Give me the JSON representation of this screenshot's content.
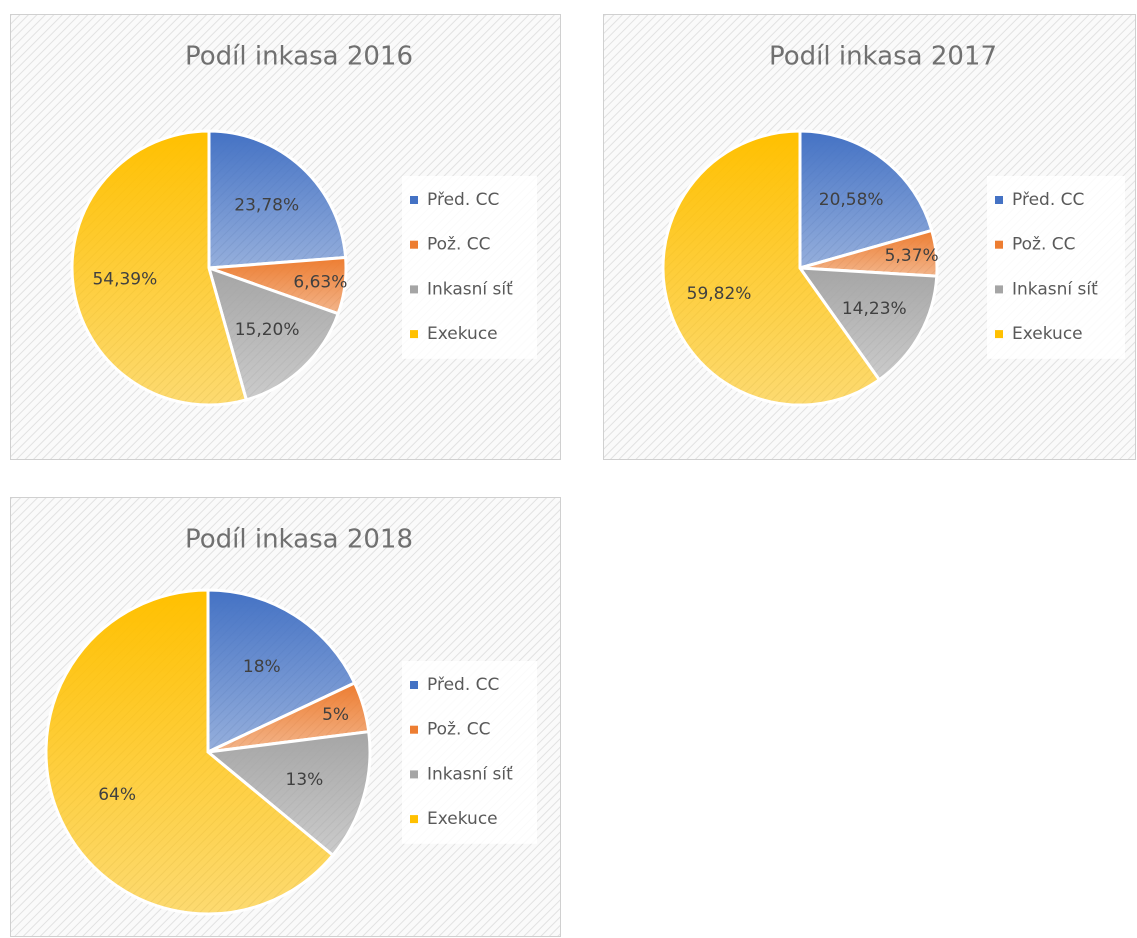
{
  "chart_data": [
    {
      "type": "pie",
      "title": "Podíl inkasa 2016",
      "categories": [
        "Před. CC",
        "Pož. CC",
        "Inkasní síť",
        "Exekuce"
      ],
      "values": [
        23.78,
        6.63,
        15.2,
        54.39
      ],
      "value_labels": [
        "23,78%",
        "6,63%",
        "15,20%",
        "54,39%"
      ],
      "colors": [
        "#4472c4",
        "#ed7d31",
        "#a5a5a5",
        "#ffc000"
      ],
      "legend": "right"
    },
    {
      "type": "pie",
      "title": "Podíl inkasa 2017",
      "categories": [
        "Před. CC",
        "Pož. CC",
        "Inkasní síť",
        "Exekuce"
      ],
      "values": [
        20.58,
        5.37,
        14.23,
        59.82
      ],
      "value_labels": [
        "20,58%",
        "5,37%",
        "14,23%",
        "59,82%"
      ],
      "colors": [
        "#4472c4",
        "#ed7d31",
        "#a5a5a5",
        "#ffc000"
      ],
      "legend": "right"
    },
    {
      "type": "pie",
      "title": "Podíl inkasa 2018",
      "categories": [
        "Před. CC",
        "Pož. CC",
        "Inkasní síť",
        "Exekuce"
      ],
      "values": [
        18,
        5,
        13,
        64
      ],
      "value_labels": [
        "18%",
        "5%",
        "13%",
        "64%"
      ],
      "colors": [
        "#4472c4",
        "#ed7d31",
        "#a5a5a5",
        "#ffc000"
      ],
      "legend": "right"
    }
  ]
}
